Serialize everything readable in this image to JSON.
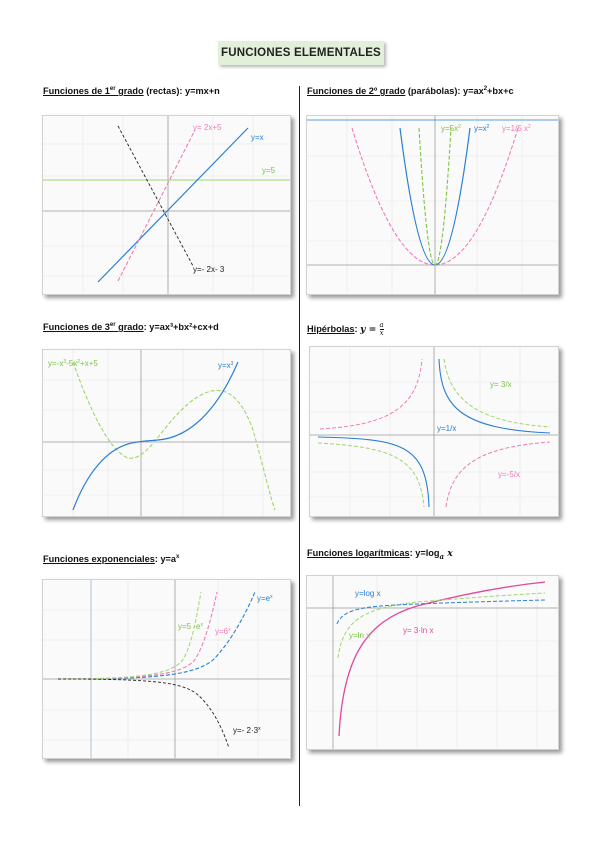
{
  "title": "FUNCIONES ELEMENTALES",
  "sections": {
    "lineales": {
      "name": "Funciones de 1",
      "sup": "er",
      "name2": " grado",
      "paren": " (rectas)",
      "formula": ": y=mx+n",
      "labels": [
        "y= 2x+5",
        "y=x",
        "y=5",
        "y=- 2x- 3"
      ]
    },
    "parabolas": {
      "name": "Funciones de 2º grado",
      "paren": " (parábolas)",
      "formula_a": ": y=ax",
      "formula_sup": "2",
      "formula_b": "+bx+c",
      "labels": [
        "y=5x",
        "y=x",
        "y=1/5 x"
      ]
    },
    "cubicas": {
      "name": "Funciones de 3",
      "sup": "er",
      "name2": " grado",
      "formula": ": y=ax³+bx²+cx+d",
      "labels": [
        "y=-x",
        "-5x",
        "+x+5",
        "y=x"
      ]
    },
    "hiperbolas": {
      "name": "Hipérbolas",
      "formula": ": y = a/x",
      "labels": [
        "y= 3/x",
        "y=1/x",
        "y=-5/x"
      ]
    },
    "exponenciales": {
      "name": "Funciones exponenciales",
      "formula": ": y=a",
      "sup": "x",
      "labels": [
        "y=e",
        "y=5 ·e",
        "y=6",
        "y=- 2·3"
      ]
    },
    "logaritmicas": {
      "name": "Funciones logarítmicas",
      "formula": ": y=log",
      "labels": [
        "y=log x",
        "y=ln x",
        "y= 3·ln x"
      ]
    }
  },
  "colors": {
    "blue": "#2a7fd4",
    "pink": "#e0489a",
    "pink_light": "#ef7cba",
    "green": "#7cc443",
    "black": "#222222",
    "title_bg": "#e2efd9"
  }
}
